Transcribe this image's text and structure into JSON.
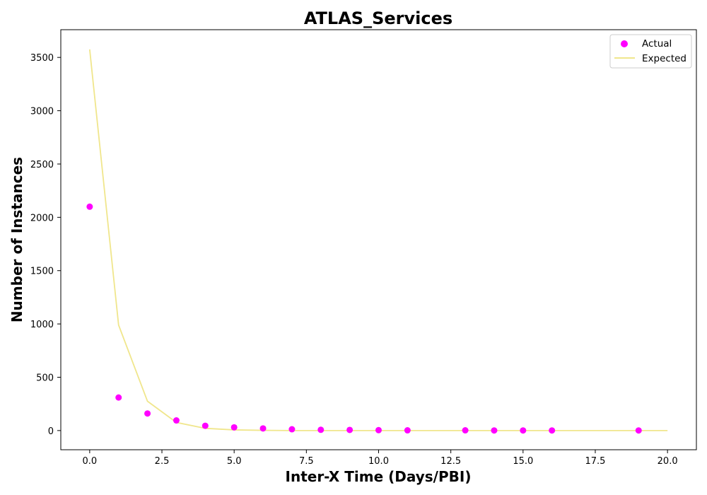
{
  "chart_data": {
    "type": "scatter",
    "title": "ATLAS_Services",
    "xlabel": "Inter-X Time (Days/PBI)",
    "ylabel": "Number of Instances",
    "xlim": [
      -1.0,
      21.0
    ],
    "ylim": [
      -180,
      3760
    ],
    "xticks": [
      0.0,
      2.5,
      5.0,
      7.5,
      10.0,
      12.5,
      15.0,
      17.5,
      20.0
    ],
    "xtick_labels": [
      "0.0",
      "2.5",
      "5.0",
      "7.5",
      "10.0",
      "12.5",
      "15.0",
      "17.5",
      "20.0"
    ],
    "yticks": [
      0,
      500,
      1000,
      1500,
      2000,
      2500,
      3000,
      3500
    ],
    "ytick_labels": [
      "0",
      "500",
      "1000",
      "1500",
      "2000",
      "2500",
      "3000",
      "3500"
    ],
    "grid": false,
    "legend_position": "top-right",
    "series": [
      {
        "name": "Actual",
        "kind": "scatter",
        "color": "#ff00ff",
        "x": [
          0,
          1,
          2,
          3,
          4,
          5,
          6,
          7,
          8,
          9,
          10,
          11,
          13,
          14,
          15,
          16,
          19
        ],
        "y": [
          2100,
          310,
          160,
          95,
          45,
          30,
          20,
          12,
          7,
          6,
          4,
          2,
          2,
          1,
          1,
          1,
          1
        ]
      },
      {
        "name": "Expected",
        "kind": "line",
        "color": "#f0e68c",
        "x": [
          0,
          1,
          2,
          3,
          4,
          5,
          6,
          7,
          8,
          9,
          10,
          11,
          12,
          13,
          14,
          15,
          16,
          17,
          18,
          19,
          20
        ],
        "y": [
          3575,
          990,
          275,
          76,
          21,
          6,
          2,
          0,
          0,
          0,
          0,
          0,
          0,
          0,
          0,
          0,
          0,
          0,
          0,
          0,
          0
        ]
      }
    ]
  }
}
